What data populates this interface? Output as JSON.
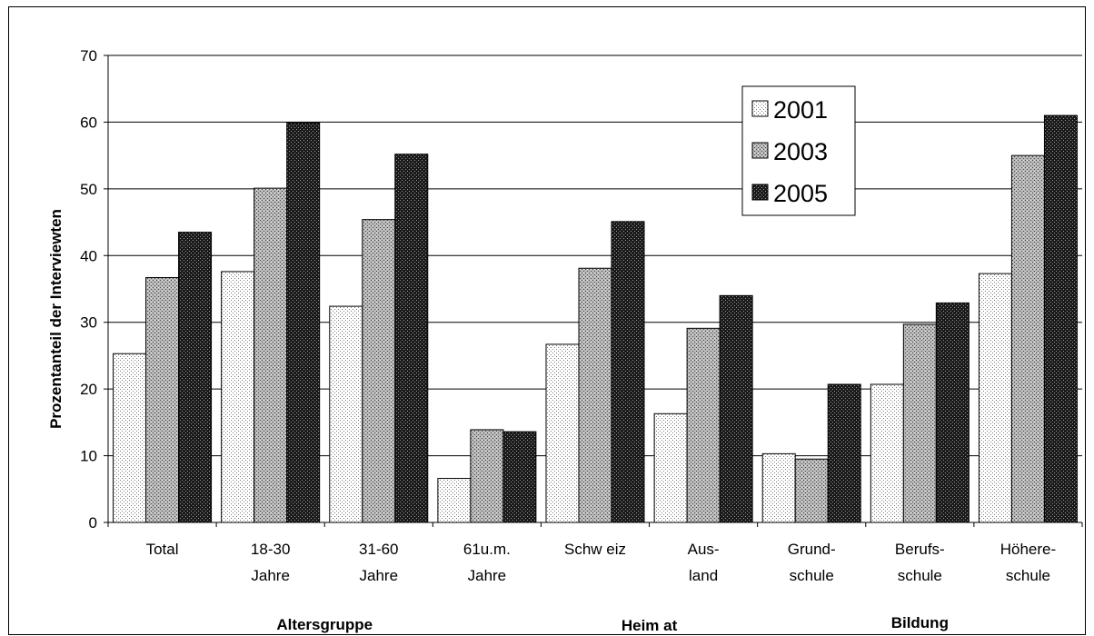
{
  "chart_data": {
    "type": "bar",
    "title": "",
    "ylabel": "Prozentanteil der Interviewten",
    "ylim": [
      0,
      70
    ],
    "yticks": [
      0,
      10,
      20,
      30,
      40,
      50,
      60,
      70
    ],
    "grid": true,
    "legend_position": "top-right",
    "categories": [
      [
        "Total"
      ],
      [
        "18-30",
        "Jahre"
      ],
      [
        "31-60",
        "Jahre"
      ],
      [
        "61u.m.",
        "Jahre"
      ],
      [
        "Schw eiz"
      ],
      [
        "Aus-",
        "land"
      ],
      [
        "Grund-",
        "schule"
      ],
      [
        "Berufs-",
        "schule"
      ],
      [
        "Höhere-",
        "schule"
      ]
    ],
    "groups": [
      {
        "label": "Altersgruppe",
        "from": 0,
        "to": 3
      },
      {
        "label": "Heim at",
        "from": 4,
        "to": 5
      },
      {
        "label": "Bildung",
        "from": 6,
        "to": 8
      }
    ],
    "series": [
      {
        "name": "2001",
        "pattern": "light",
        "values": [
          25.3,
          37.6,
          32.4,
          6.6,
          26.7,
          16.3,
          10.3,
          20.7,
          37.3
        ]
      },
      {
        "name": "2003",
        "pattern": "medium",
        "values": [
          36.7,
          50.1,
          45.4,
          13.9,
          38.1,
          29.1,
          9.5,
          29.7,
          55.0
        ]
      },
      {
        "name": "2005",
        "pattern": "dark",
        "values": [
          43.5,
          59.9,
          55.2,
          13.6,
          45.1,
          34.0,
          20.7,
          32.9,
          61.0
        ]
      }
    ]
  }
}
